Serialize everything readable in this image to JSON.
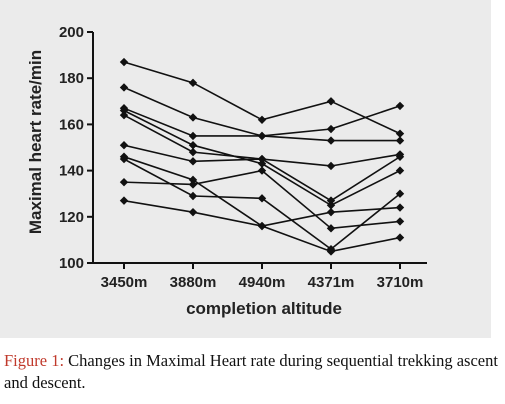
{
  "chart_data": {
    "type": "line",
    "title": "",
    "xlabel": "completion altitude",
    "ylabel": "Maximal heart rate/min",
    "categories": [
      "3450m",
      "3880m",
      "4940m",
      "4371m",
      "3710m"
    ],
    "ylim": [
      100,
      200
    ],
    "yticks": [
      100,
      120,
      140,
      160,
      180,
      200
    ],
    "legend": "none",
    "grid": false,
    "marker": "diamond",
    "line_color": "#111111",
    "series": [
      {
        "values": [
          187,
          178,
          162,
          170,
          156
        ]
      },
      {
        "values": [
          176,
          163,
          155,
          153,
          153
        ]
      },
      {
        "values": [
          167,
          155,
          155,
          158,
          168
        ]
      },
      {
        "values": [
          166,
          151,
          143,
          125,
          140
        ]
      },
      {
        "values": [
          164,
          148,
          145,
          127,
          146
        ]
      },
      {
        "values": [
          151,
          144,
          145,
          142,
          147
        ]
      },
      {
        "values": [
          146,
          136,
          116,
          105,
          111
        ]
      },
      {
        "values": [
          145,
          129,
          128,
          106,
          130
        ]
      },
      {
        "values": [
          135,
          134,
          140,
          115,
          118
        ]
      },
      {
        "values": [
          127,
          122,
          116,
          122,
          124
        ]
      }
    ]
  },
  "caption": {
    "label": "Figure 1:",
    "text": " Changes in Maximal Heart rate during sequential trekking ascent and descent."
  }
}
